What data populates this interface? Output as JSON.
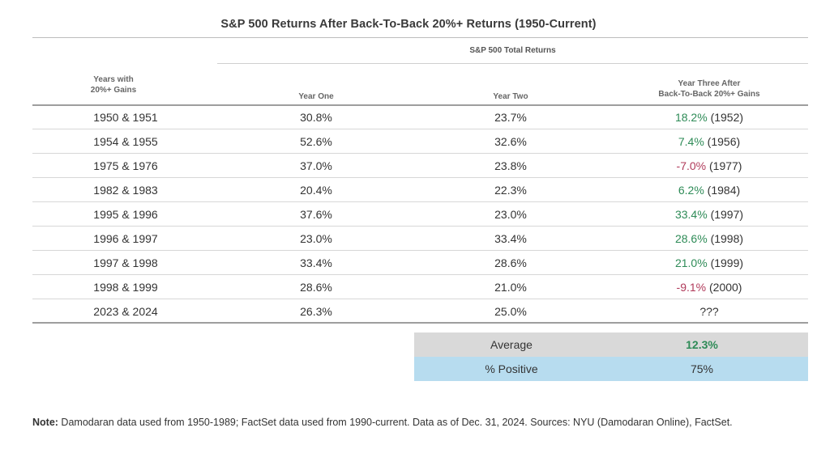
{
  "title": "S&P 500 Returns After Back-To-Back 20%+ Returns (1950-Current)",
  "group_header": "S&P 500 Total Returns",
  "columns": {
    "years_line1": "Years with",
    "years_line2": "20%+ Gains",
    "year_one": "Year One",
    "year_two": "Year Two",
    "year_three_line1": "Year Three After",
    "year_three_line2": "Back-To-Back 20%+ Gains"
  },
  "rows": [
    {
      "years": "1950 & 1951",
      "year_one": "30.8%",
      "year_two": "23.7%",
      "year_three_value": "18.2%",
      "year_three_year": "(1952)",
      "sign": "pos"
    },
    {
      "years": "1954 & 1955",
      "year_one": "52.6%",
      "year_two": "32.6%",
      "year_three_value": "7.4%",
      "year_three_year": "(1956)",
      "sign": "pos"
    },
    {
      "years": "1975 & 1976",
      "year_one": "37.0%",
      "year_two": "23.8%",
      "year_three_value": "-7.0%",
      "year_three_year": "(1977)",
      "sign": "neg"
    },
    {
      "years": "1982 & 1983",
      "year_one": "20.4%",
      "year_two": "22.3%",
      "year_three_value": "6.2%",
      "year_three_year": "(1984)",
      "sign": "pos"
    },
    {
      "years": "1995 & 1996",
      "year_one": "37.6%",
      "year_two": "23.0%",
      "year_three_value": "33.4%",
      "year_three_year": "(1997)",
      "sign": "pos"
    },
    {
      "years": "1996 & 1997",
      "year_one": "23.0%",
      "year_two": "33.4%",
      "year_three_value": "28.6%",
      "year_three_year": "(1998)",
      "sign": "pos"
    },
    {
      "years": "1997 & 1998",
      "year_one": "33.4%",
      "year_two": "28.6%",
      "year_three_value": "21.0%",
      "year_three_year": "(1999)",
      "sign": "pos"
    },
    {
      "years": "1998 & 1999",
      "year_one": "28.6%",
      "year_two": "21.0%",
      "year_three_value": "-9.1%",
      "year_three_year": "(2000)",
      "sign": "neg"
    },
    {
      "years": "2023 & 2024",
      "year_one": "26.3%",
      "year_two": "25.0%",
      "year_three_value": "???",
      "year_three_year": "",
      "sign": "none"
    }
  ],
  "summary": {
    "average_label": "Average",
    "average_value": "12.3%",
    "positive_label": "% Positive",
    "positive_value": "75%"
  },
  "note": {
    "label": "Note:",
    "text": " Damodaran data used from 1950-1989; FactSet data used from 1990-current. Data as of Dec. 31, 2024. Sources: NYU (Damodaran Online), FactSet."
  },
  "colors": {
    "positive": "#2e8b57",
    "negative": "#b03a5a",
    "average_bg": "#d9d9d9",
    "positive_bg": "#b7dcef"
  }
}
